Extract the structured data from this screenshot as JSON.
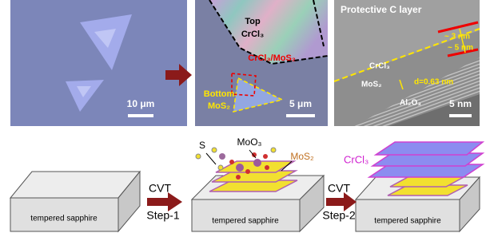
{
  "panels": [
    {
      "scale_bar": "10 μm"
    },
    {
      "labels": {
        "top": "Top",
        "top_material": "CrCl₃",
        "interface": "CrCl₃/MoS₂",
        "bottom": "Bottom",
        "bottom_material": "MoS₂"
      },
      "scale_bar": "5 μm"
    },
    {
      "title": "Protective C layer",
      "annotations": [
        "~ 3 nm",
        "~ 5 nm",
        "CrCl₃",
        "MoS₂",
        "d=0.63 nm",
        "Al₂O₃"
      ],
      "scale_bar": "5 nm"
    }
  ],
  "schematic": {
    "substrate": [
      "tempered sapphire",
      "tempered sapphire",
      "tempered sapphire"
    ],
    "steps": [
      {
        "method": "CVT",
        "label": "Step-1"
      },
      {
        "method": "CVT",
        "label": "Step-2"
      }
    ],
    "precursors": [
      "S",
      "MoO₃"
    ],
    "products": [
      "MoS₂",
      "CrCl₃"
    ]
  }
}
